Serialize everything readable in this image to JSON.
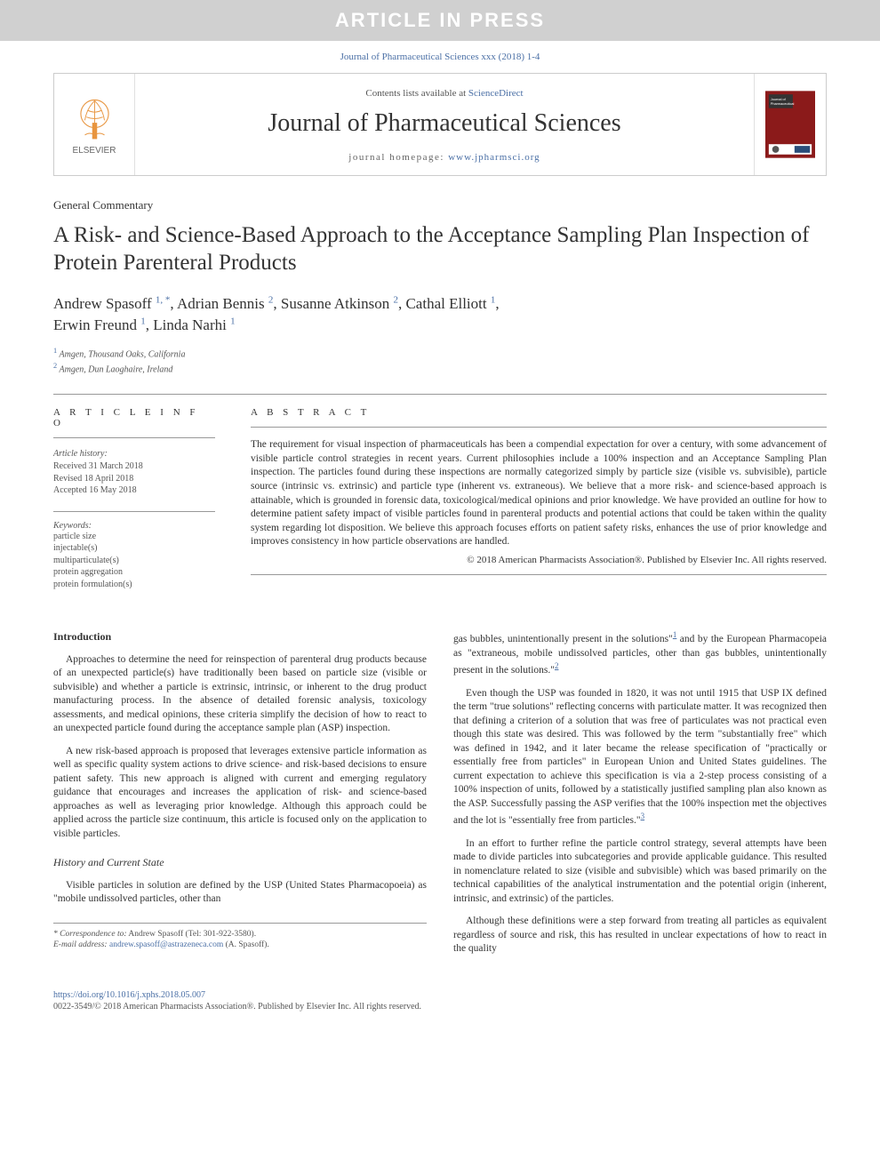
{
  "banner": "ARTICLE IN PRESS",
  "journal_ref": "Journal of Pharmaceutical Sciences xxx (2018) 1-4",
  "header": {
    "contents_prefix": "Contents lists available at ",
    "contents_link": "ScienceDirect",
    "journal_title": "Journal of Pharmaceutical Sciences",
    "homepage_prefix": "journal homepage: ",
    "homepage_link": "www.jpharmsci.org",
    "elsevier_label": "ELSEVIER"
  },
  "article_type": "General Commentary",
  "title": "A Risk- and Science-Based Approach to the Acceptance Sampling Plan Inspection of Protein Parenteral Products",
  "authors_html": "Andrew Spasoff <sup>1, *</sup>, Adrian Bennis <sup>2</sup>, Susanne Atkinson <sup>2</sup>, Cathal Elliott <sup>1</sup>, Erwin Freund <sup>1</sup>, Linda Narhi <sup>1</sup>",
  "affiliations": [
    {
      "num": "1",
      "text": "Amgen, Thousand Oaks, California"
    },
    {
      "num": "2",
      "text": "Amgen, Dun Laoghaire, Ireland"
    }
  ],
  "info": {
    "heading": "A R T I C L E   I N F O",
    "history_label": "Article history:",
    "received": "Received 31 March 2018",
    "revised": "Revised 18 April 2018",
    "accepted": "Accepted 16 May 2018",
    "keywords_label": "Keywords:",
    "keywords": [
      "particle size",
      "injectable(s)",
      "multiparticulate(s)",
      "protein aggregation",
      "protein formulation(s)"
    ]
  },
  "abstract": {
    "heading": "A B S T R A C T",
    "text": "The requirement for visual inspection of pharmaceuticals has been a compendial expectation for over a century, with some advancement of visible particle control strategies in recent years. Current philosophies include a 100% inspection and an Acceptance Sampling Plan inspection. The particles found during these inspections are normally categorized simply by particle size (visible vs. subvisible), particle source (intrinsic vs. extrinsic) and particle type (inherent vs. extraneous). We believe that a more risk- and science-based approach is attainable, which is grounded in forensic data, toxicological/medical opinions and prior knowledge. We have provided an outline for how to determine patient safety impact of visible particles found in parenteral products and potential actions that could be taken within the quality system regarding lot disposition. We believe this approach focuses efforts on patient safety risks, enhances the use of prior knowledge and improves consistency in how particle observations are handled.",
    "copyright": "© 2018 American Pharmacists Association®. Published by Elsevier Inc. All rights reserved."
  },
  "body": {
    "intro_heading": "Introduction",
    "p1": "Approaches to determine the need for reinspection of parenteral drug products because of an unexpected particle(s) have traditionally been based on particle size (visible or subvisible) and whether a particle is extrinsic, intrinsic, or inherent to the drug product manufacturing process. In the absence of detailed forensic analysis, toxicology assessments, and medical opinions, these criteria simplify the decision of how to react to an unexpected particle found during the acceptance sample plan (ASP) inspection.",
    "p2": "A new risk-based approach is proposed that leverages extensive particle information as well as specific quality system actions to drive science- and risk-based decisions to ensure patient safety. This new approach is aligned with current and emerging regulatory guidance that encourages and increases the application of risk- and science-based approaches as well as leveraging prior knowledge. Although this approach could be applied across the particle size continuum, this article is focused only on the application to visible particles.",
    "history_heading": "History and Current State",
    "p3": "Visible particles in solution are defined by the USP (United States Pharmacopoeia) as \"mobile undissolved particles, other than",
    "p4_prefix": "gas bubbles, unintentionally present in the solutions\"",
    "p4_mid": " and by the European Pharmacopeia as \"extraneous, mobile undissolved particles, other than gas bubbles, unintentionally present in the solutions.\"",
    "p5": "Even though the USP was founded in 1820, it was not until 1915 that USP IX defined the term \"true solutions\" reflecting concerns with particulate matter. It was recognized then that defining a criterion of a solution that was free of particulates was not practical even though this state was desired. This was followed by the term \"substantially free\" which was defined in 1942, and it later became the release specification of \"practically or essentially free from particles\" in European Union and United States guidelines. The current expectation to achieve this specification is via a 2-step process consisting of a 100% inspection of units, followed by a statistically justified sampling plan also known as the ASP. Successfully passing the ASP verifies that the 100% inspection met the objectives and the lot is \"essentially free from particles.\"",
    "p6": "In an effort to further refine the particle control strategy, several attempts have been made to divide particles into subcategories and provide applicable guidance. This resulted in nomenclature related to size (visible and subvisible) which was based primarily on the technical capabilities of the analytical instrumentation and the potential origin (inherent, intrinsic, and extrinsic) of the particles.",
    "p7": "Although these definitions were a step forward from treating all particles as equivalent regardless of source and risk, this has resulted in unclear expectations of how to react in the quality"
  },
  "footnote": {
    "corr_label": "* Correspondence to:",
    "corr_text": " Andrew Spasoff (Tel: 301-922-3580).",
    "email_label": "E-mail address: ",
    "email": "andrew.spasoff@astrazeneca.com",
    "email_suffix": " (A. Spasoff)."
  },
  "footer": {
    "doi": "https://doi.org/10.1016/j.xphs.2018.05.007",
    "issn_line": "0022-3549/© 2018 American Pharmacists Association®. Published by Elsevier Inc. All rights reserved."
  },
  "colors": {
    "link": "#4a6fa5",
    "banner_bg": "#d0d0d0",
    "cover_bg": "#8b1a1a"
  }
}
